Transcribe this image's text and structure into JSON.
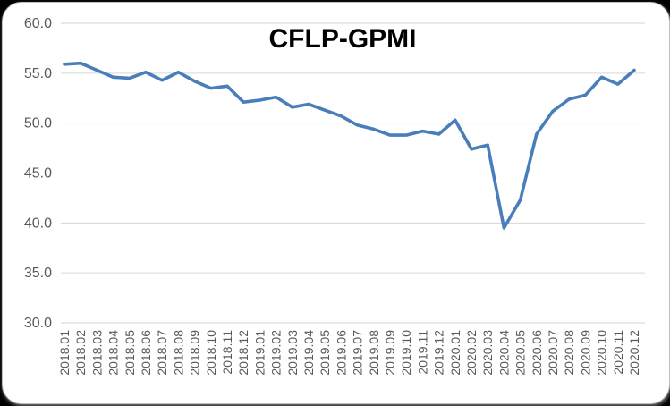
{
  "chart_data": {
    "type": "line",
    "title": "CFLP-GPMI",
    "xlabel": "",
    "ylabel": "",
    "x": [
      "2018.01",
      "2018.02",
      "2018.03",
      "2018.04",
      "2018.05",
      "2018.06",
      "2018.07",
      "2018.08",
      "2018.09",
      "2018.10",
      "2018.11",
      "2018.12",
      "2019.01",
      "2019.02",
      "2019.03",
      "2019.04",
      "2019.05",
      "2019.06",
      "2019.07",
      "2019.08",
      "2019.09",
      "2019.10",
      "2019.11",
      "2019.12",
      "2020.01",
      "2020.02",
      "2020.03",
      "2020.04",
      "2020.05",
      "2020.06",
      "2020.07",
      "2020.08",
      "2020.09",
      "2020.10",
      "2020.11",
      "2020.12"
    ],
    "series": [
      {
        "name": "CFLP-GPMI",
        "values": [
          55.9,
          56.0,
          55.3,
          54.6,
          54.5,
          55.1,
          54.3,
          55.1,
          54.2,
          53.5,
          53.7,
          52.1,
          52.3,
          52.6,
          51.6,
          51.9,
          51.3,
          50.7,
          49.8,
          49.4,
          48.8,
          48.8,
          49.2,
          48.9,
          50.3,
          47.4,
          47.8,
          39.5,
          42.3,
          48.9,
          51.2,
          52.4,
          52.8,
          54.6,
          53.9,
          55.3
        ]
      }
    ],
    "ylim": [
      30.0,
      60.0
    ],
    "yticks": [
      60.0,
      55.0,
      50.0,
      45.0,
      40.0,
      35.0,
      30.0
    ],
    "ytick_labels": [
      "60.0",
      "55.0",
      "50.0",
      "45.0",
      "40.0",
      "35.0",
      "30.0"
    ],
    "grid": "horizontal-only",
    "legend": "none",
    "x_tick_rotation_deg": 90,
    "colors": {
      "line": "#4a7ebb",
      "gridline": "#d6d6d6",
      "tick_label": "#595959",
      "title": "#000000",
      "plot_background": "#ffffff"
    }
  }
}
